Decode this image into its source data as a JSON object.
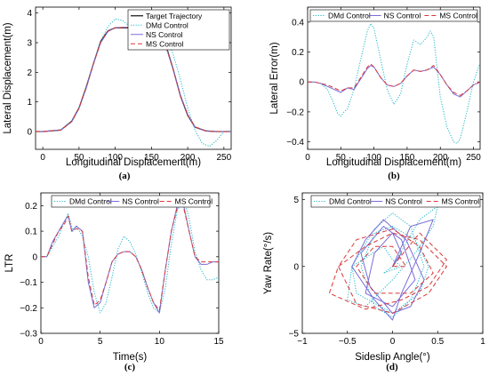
{
  "colors": {
    "target": "#202020",
    "dmd": "#1fb8c8",
    "ns": "#7a6cd8",
    "ms": "#d9383a"
  },
  "chart_data": [
    {
      "id": "a",
      "type": "line",
      "panel_label": "(a)",
      "xlabel": "Longitudinal Displacement(m)",
      "ylabel": "Lateral Displacement(m)",
      "xlim": [
        -10,
        260
      ],
      "ylim": [
        -0.6,
        4.2
      ],
      "xticks": [
        0,
        50,
        100,
        150,
        200,
        250
      ],
      "yticks": [
        0,
        1,
        2,
        3,
        4
      ],
      "legend_position": "top-right",
      "series": [
        {
          "name": "Target Trajectory",
          "style": "solid",
          "color": "target",
          "x": [
            -10,
            0,
            25,
            40,
            50,
            60,
            70,
            80,
            90,
            100,
            110,
            120,
            130,
            140,
            150,
            160,
            170,
            180,
            190,
            200,
            210,
            225,
            240,
            260
          ],
          "y": [
            0,
            0,
            0.05,
            0.35,
            0.8,
            1.5,
            2.3,
            3.05,
            3.4,
            3.5,
            3.5,
            3.5,
            3.5,
            3.5,
            3.5,
            3.3,
            2.9,
            2.1,
            1.2,
            0.55,
            0.15,
            0.02,
            0,
            0
          ]
        },
        {
          "name": "DMd Control",
          "style": "dotted",
          "color": "dmd",
          "x": [
            -10,
            0,
            25,
            40,
            50,
            60,
            70,
            80,
            90,
            100,
            110,
            120,
            130,
            140,
            150,
            160,
            170,
            180,
            190,
            200,
            210,
            220,
            230,
            240,
            250,
            260
          ],
          "y": [
            0,
            0,
            0.05,
            0.35,
            0.8,
            1.45,
            2.3,
            3.05,
            3.55,
            3.8,
            3.75,
            3.55,
            3.35,
            3.3,
            3.35,
            3.4,
            3.25,
            2.6,
            1.75,
            0.8,
            0.05,
            -0.4,
            -0.5,
            -0.3,
            0,
            0.02
          ]
        },
        {
          "name": "NS Control",
          "style": "solid",
          "color": "ns",
          "x": [
            -10,
            0,
            25,
            40,
            50,
            60,
            70,
            80,
            90,
            100,
            110,
            120,
            130,
            140,
            150,
            160,
            170,
            180,
            190,
            200,
            210,
            225,
            240,
            260
          ],
          "y": [
            0,
            0,
            0.05,
            0.33,
            0.78,
            1.48,
            2.3,
            3.0,
            3.38,
            3.5,
            3.52,
            3.52,
            3.52,
            3.5,
            3.48,
            3.28,
            2.85,
            2.1,
            1.22,
            0.58,
            0.16,
            0.02,
            0,
            0
          ]
        },
        {
          "name": "MS Control",
          "style": "dashed",
          "color": "ms",
          "x": [
            -10,
            0,
            25,
            40,
            50,
            60,
            70,
            80,
            90,
            100,
            110,
            120,
            130,
            140,
            150,
            160,
            170,
            180,
            190,
            200,
            210,
            225,
            240,
            260
          ],
          "y": [
            0,
            0,
            0.05,
            0.34,
            0.79,
            1.49,
            2.3,
            3.02,
            3.39,
            3.5,
            3.51,
            3.51,
            3.51,
            3.5,
            3.49,
            3.29,
            2.87,
            2.1,
            1.21,
            0.57,
            0.16,
            0.02,
            0,
            0
          ]
        }
      ]
    },
    {
      "id": "b",
      "type": "line",
      "panel_label": "(b)",
      "xlabel": "Longitudinal Displacement(m)",
      "ylabel": "Lateral Error(m)",
      "xlim": [
        0,
        260
      ],
      "ylim": [
        -0.45,
        0.5
      ],
      "xticks": [
        0,
        50,
        100,
        150,
        200,
        250
      ],
      "yticks": [
        -0.4,
        -0.2,
        0,
        0.2,
        0.4
      ],
      "legend_position": "top",
      "series": [
        {
          "name": "DMd Control",
          "style": "dotted",
          "color": "dmd",
          "x": [
            0,
            10,
            20,
            30,
            40,
            45,
            50,
            55,
            60,
            70,
            80,
            90,
            95,
            100,
            110,
            120,
            130,
            140,
            150,
            160,
            170,
            180,
            185,
            190,
            195,
            200,
            210,
            220,
            225,
            230,
            240,
            250,
            260
          ],
          "y": [
            0,
            0,
            -0.01,
            -0.05,
            -0.15,
            -0.21,
            -0.23,
            -0.2,
            -0.18,
            -0.05,
            0.15,
            0.34,
            0.39,
            0.36,
            0.15,
            -0.05,
            -0.15,
            -0.08,
            0.12,
            0.28,
            0.25,
            0.3,
            0.34,
            0.3,
            0.1,
            -0.1,
            -0.3,
            -0.4,
            -0.41,
            -0.38,
            -0.2,
            0,
            0.13
          ]
        },
        {
          "name": "NS Control",
          "style": "solid",
          "color": "ns",
          "x": [
            0,
            10,
            20,
            30,
            40,
            50,
            60,
            70,
            80,
            90,
            95,
            100,
            110,
            120,
            130,
            140,
            150,
            160,
            170,
            180,
            190,
            200,
            210,
            220,
            230,
            240,
            250,
            260
          ],
          "y": [
            0,
            0,
            -0.01,
            -0.03,
            -0.05,
            -0.07,
            -0.04,
            -0.05,
            0.02,
            0.09,
            0.11,
            0.1,
            0.03,
            -0.02,
            -0.03,
            -0.01,
            0.04,
            0.08,
            0.07,
            0.08,
            0.1,
            0.05,
            -0.02,
            -0.08,
            -0.1,
            -0.06,
            -0.02,
            0
          ]
        },
        {
          "name": "MS Control",
          "style": "dashed",
          "color": "ms",
          "x": [
            0,
            10,
            20,
            30,
            40,
            50,
            60,
            70,
            80,
            90,
            95,
            100,
            110,
            120,
            130,
            140,
            150,
            160,
            170,
            180,
            190,
            200,
            210,
            220,
            230,
            240,
            250,
            260
          ],
          "y": [
            0,
            0,
            -0.01,
            -0.02,
            -0.04,
            -0.06,
            -0.04,
            -0.04,
            0.03,
            0.1,
            0.12,
            0.1,
            0.03,
            -0.02,
            -0.03,
            -0.01,
            0.04,
            0.08,
            0.07,
            0.08,
            0.11,
            0.05,
            -0.02,
            -0.07,
            -0.09,
            -0.06,
            -0.02,
            0
          ]
        }
      ]
    },
    {
      "id": "c",
      "type": "line",
      "panel_label": "(c)",
      "xlabel": "Time(s)",
      "ylabel": "LTR",
      "xlim": [
        0,
        15
      ],
      "ylim": [
        -0.3,
        0.25
      ],
      "xticks": [
        0,
        5,
        10,
        15
      ],
      "yticks": [
        -0.3,
        -0.2,
        -0.1,
        0,
        0.1,
        0.2
      ],
      "legend_position": "top",
      "series": [
        {
          "name": "DMd Control",
          "style": "dotted",
          "color": "dmd",
          "x": [
            0,
            0.5,
            1,
            1.5,
            2,
            2.3,
            2.7,
            3,
            3.5,
            4,
            4.5,
            5,
            5.5,
            6,
            6.5,
            7,
            7.5,
            8,
            8.5,
            9,
            9.5,
            10,
            10.5,
            11,
            11.5,
            12,
            12.5,
            13,
            13.5,
            14,
            14.5,
            15
          ],
          "y": [
            0,
            0,
            0.04,
            0.08,
            0.14,
            0.17,
            0.1,
            0.12,
            0.08,
            0,
            -0.14,
            -0.22,
            -0.18,
            -0.08,
            0.03,
            0.08,
            0.06,
            0.01,
            -0.06,
            -0.14,
            -0.2,
            -0.22,
            -0.12,
            0.05,
            0.18,
            0.23,
            0.15,
            0.02,
            -0.05,
            -0.09,
            -0.09,
            -0.08
          ]
        },
        {
          "name": "NS Control",
          "style": "solid",
          "color": "ns",
          "x": [
            0,
            0.5,
            1,
            1.5,
            2,
            2.3,
            2.6,
            3,
            3.5,
            4,
            4.5,
            5,
            5.5,
            6,
            6.5,
            7,
            7.5,
            8,
            8.5,
            9,
            9.5,
            10,
            10.5,
            11,
            11.5,
            12,
            12.5,
            13,
            13.5,
            14,
            14.5,
            15
          ],
          "y": [
            0,
            0,
            0.06,
            0.1,
            0.14,
            0.16,
            0.1,
            0.12,
            0.1,
            -0.1,
            -0.2,
            -0.18,
            -0.1,
            -0.02,
            0.01,
            0.02,
            0.02,
            0,
            -0.05,
            -0.12,
            -0.18,
            -0.22,
            -0.05,
            0.1,
            0.2,
            0.21,
            0.1,
            0,
            -0.03,
            -0.03,
            -0.02,
            -0.02
          ]
        },
        {
          "name": "MS Control",
          "style": "dashed",
          "color": "ms",
          "x": [
            0,
            0.5,
            1,
            1.5,
            2,
            2.3,
            2.6,
            3,
            3.5,
            4,
            4.5,
            5,
            5.5,
            6,
            6.5,
            7,
            7.5,
            8,
            8.5,
            9,
            9.5,
            10,
            10.5,
            11,
            11.5,
            12,
            12.5,
            13,
            13.5,
            14,
            14.5,
            15
          ],
          "y": [
            0,
            0,
            0.05,
            0.1,
            0.13,
            0.16,
            0.1,
            0.11,
            0.1,
            -0.08,
            -0.19,
            -0.17,
            -0.1,
            -0.02,
            0.01,
            0.02,
            0.02,
            0,
            -0.05,
            -0.12,
            -0.18,
            -0.21,
            -0.05,
            0.1,
            0.19,
            0.2,
            0.1,
            0,
            -0.02,
            -0.02,
            -0.02,
            -0.02
          ]
        }
      ]
    },
    {
      "id": "d",
      "type": "line",
      "panel_label": "(d)",
      "xlabel": "Sideslip Angle(°)",
      "ylabel": "Yaw Rate(°/s)",
      "xlim": [
        -1,
        1
      ],
      "ylim": [
        -5,
        5.5
      ],
      "xticks": [
        -1,
        -0.5,
        0,
        0.5,
        1
      ],
      "xtick_labels": [
        "−1",
        "−0.5",
        "0",
        "0.5",
        "1"
      ],
      "yticks": [
        -5,
        0,
        5
      ],
      "legend_position": "top",
      "series": [
        {
          "name": "DMd Control",
          "style": "dotted",
          "color": "dmd",
          "x": [
            0,
            0.3,
            0.5,
            0.45,
            0.25,
            0,
            -0.3,
            -0.5,
            -0.45,
            -0.2,
            0,
            0.2,
            0.35,
            0.2,
            0,
            -0.2,
            -0.35,
            -0.2,
            0,
            0.25,
            0.4,
            0.3,
            0,
            -0.4,
            -0.45,
            -0.1,
            0,
            0.1,
            -0.1,
            0
          ],
          "y": [
            0,
            3.5,
            4.5,
            3,
            1,
            -1,
            -3,
            -2.5,
            0,
            2.8,
            4,
            3,
            0,
            -2.5,
            -3.8,
            -3,
            0,
            2.5,
            3,
            2,
            0,
            -2,
            -3.5,
            -2,
            0,
            1.5,
            0.5,
            0,
            -0.5,
            0
          ]
        },
        {
          "name": "NS Control",
          "style": "solid",
          "color": "ns",
          "x": [
            0,
            0.2,
            0.45,
            0.3,
            0.1,
            0,
            -0.2,
            -0.45,
            -0.3,
            -0.1,
            0.15,
            0.35,
            0.2,
            0,
            -0.25,
            -0.35,
            -0.1,
            0.1,
            0.25,
            0,
            -0.3,
            -0.2,
            0,
            0.1,
            0
          ],
          "y": [
            0,
            3,
            3.5,
            1,
            -2,
            -4,
            -2.5,
            0,
            2,
            3.5,
            2,
            -1,
            -3,
            -3.5,
            -1.5,
            1,
            3,
            2,
            -1,
            -3,
            -2,
            1,
            2.5,
            1,
            0
          ]
        },
        {
          "name": "MS Control",
          "style": "dashed",
          "color": "ms",
          "x": [
            0,
            0.3,
            0.6,
            0.4,
            0.1,
            -0.3,
            -0.7,
            -0.6,
            -0.3,
            0,
            0.3,
            0.6,
            0.4,
            0,
            -0.4,
            -0.6,
            -0.4,
            0,
            0.3,
            0.45,
            0.2,
            -0.2,
            -0.4,
            -0.2,
            0,
            0.15,
            0
          ],
          "y": [
            0,
            2.5,
            0.5,
            -1.5,
            -2.5,
            -3.2,
            -2,
            0,
            1.5,
            2.5,
            2,
            0,
            -2,
            -3.5,
            -2.8,
            0,
            2,
            2.8,
            1.5,
            -0.5,
            -2,
            -2,
            0,
            1.5,
            1.5,
            0,
            0
          ]
        }
      ]
    }
  ]
}
